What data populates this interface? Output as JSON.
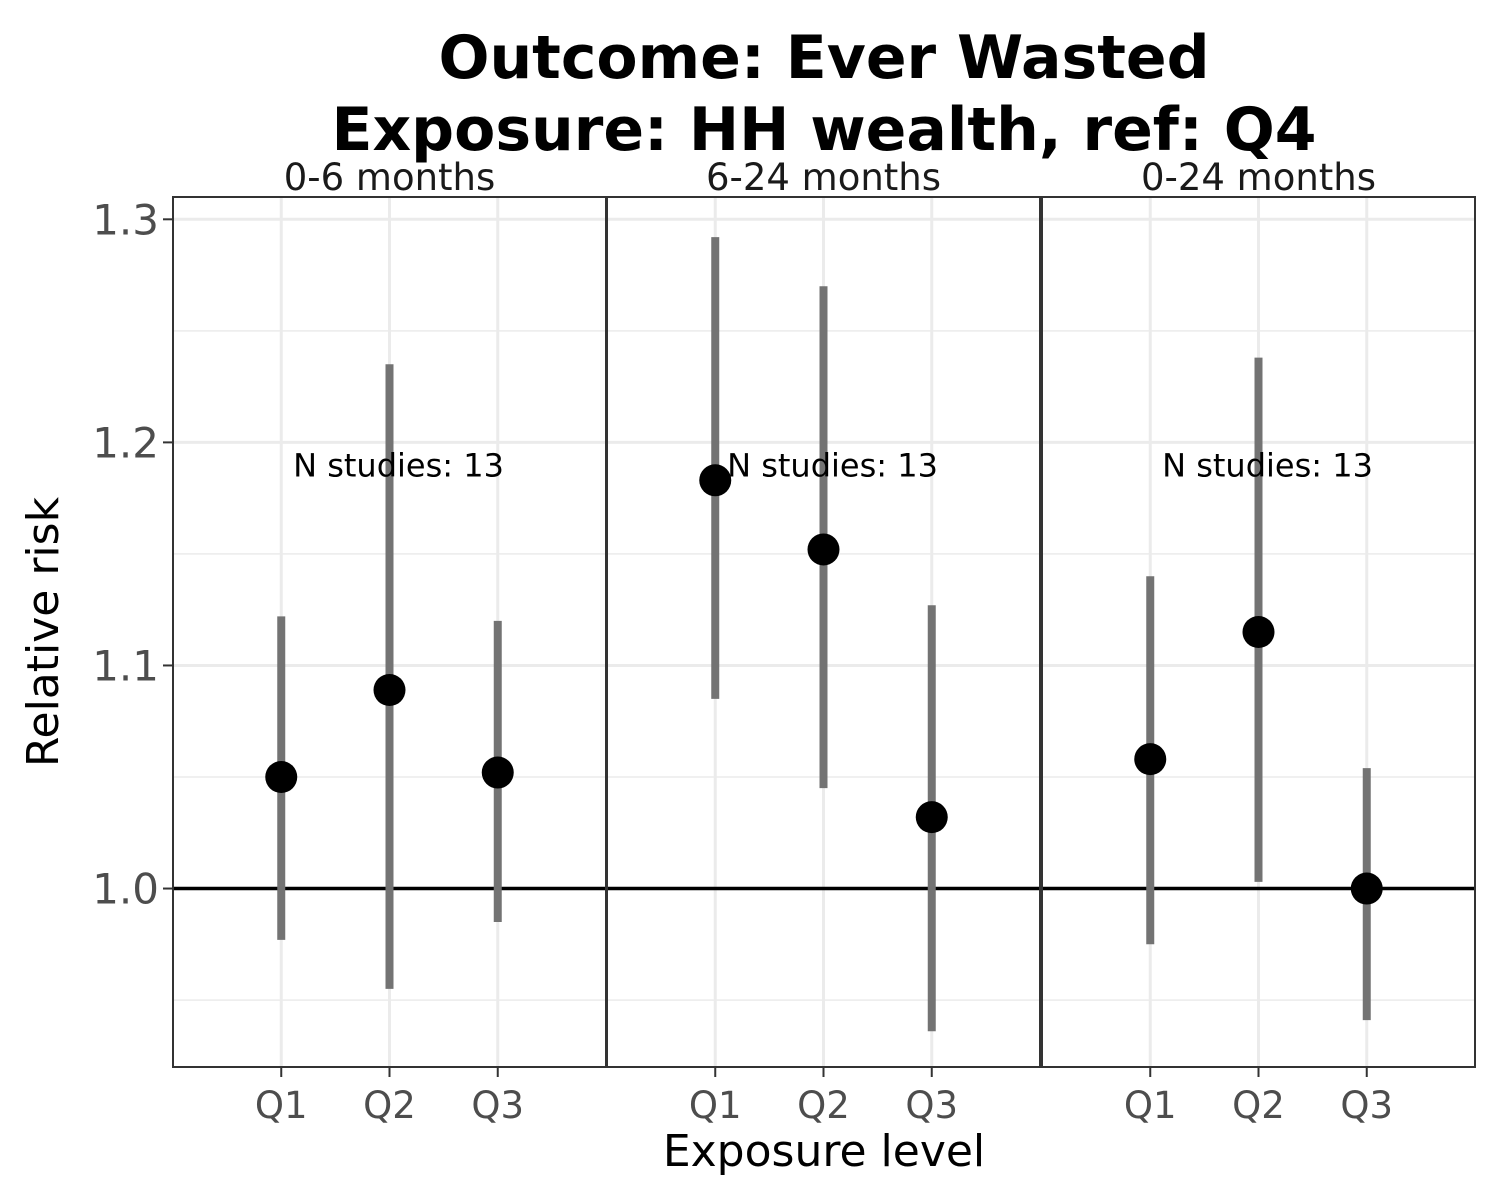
{
  "chart_data": {
    "type": "scatter",
    "title_lines": [
      "Outcome: Ever Wasted",
      "Exposure: HH wealth, ref: Q4"
    ],
    "xlabel": "Exposure level",
    "ylabel": "Relative risk",
    "ylim": [
      0.92,
      1.31
    ],
    "y_ticks": [
      1.0,
      1.1,
      1.2,
      1.3
    ],
    "y_tick_labels": [
      "1.0",
      "1.1",
      "1.2",
      "1.3"
    ],
    "y_minor_ticks": [
      0.95,
      1.05,
      1.15,
      1.25
    ],
    "reference_line": 1.0,
    "grid": true,
    "categories": [
      "Q1",
      "Q2",
      "Q3"
    ],
    "point_color": "#000000",
    "interval_color": "#737373",
    "panels": [
      {
        "label": "0-6 months",
        "annotation": "N studies: 13",
        "points": [
          {
            "x": "Q1",
            "estimate": 1.05,
            "lower": 0.977,
            "upper": 1.122
          },
          {
            "x": "Q2",
            "estimate": 1.089,
            "lower": 0.955,
            "upper": 1.235
          },
          {
            "x": "Q3",
            "estimate": 1.052,
            "lower": 0.985,
            "upper": 1.12
          }
        ]
      },
      {
        "label": "6-24 months",
        "annotation": "N studies: 13",
        "points": [
          {
            "x": "Q1",
            "estimate": 1.183,
            "lower": 1.085,
            "upper": 1.292
          },
          {
            "x": "Q2",
            "estimate": 1.152,
            "lower": 1.045,
            "upper": 1.27
          },
          {
            "x": "Q3",
            "estimate": 1.032,
            "lower": 0.936,
            "upper": 1.127
          }
        ]
      },
      {
        "label": "0-24 months",
        "annotation": "N studies: 13",
        "points": [
          {
            "x": "Q1",
            "estimate": 1.058,
            "lower": 0.975,
            "upper": 1.14
          },
          {
            "x": "Q2",
            "estimate": 1.115,
            "lower": 1.003,
            "upper": 1.238
          },
          {
            "x": "Q3",
            "estimate": 1.0,
            "lower": 0.941,
            "upper": 1.054
          }
        ]
      }
    ]
  }
}
